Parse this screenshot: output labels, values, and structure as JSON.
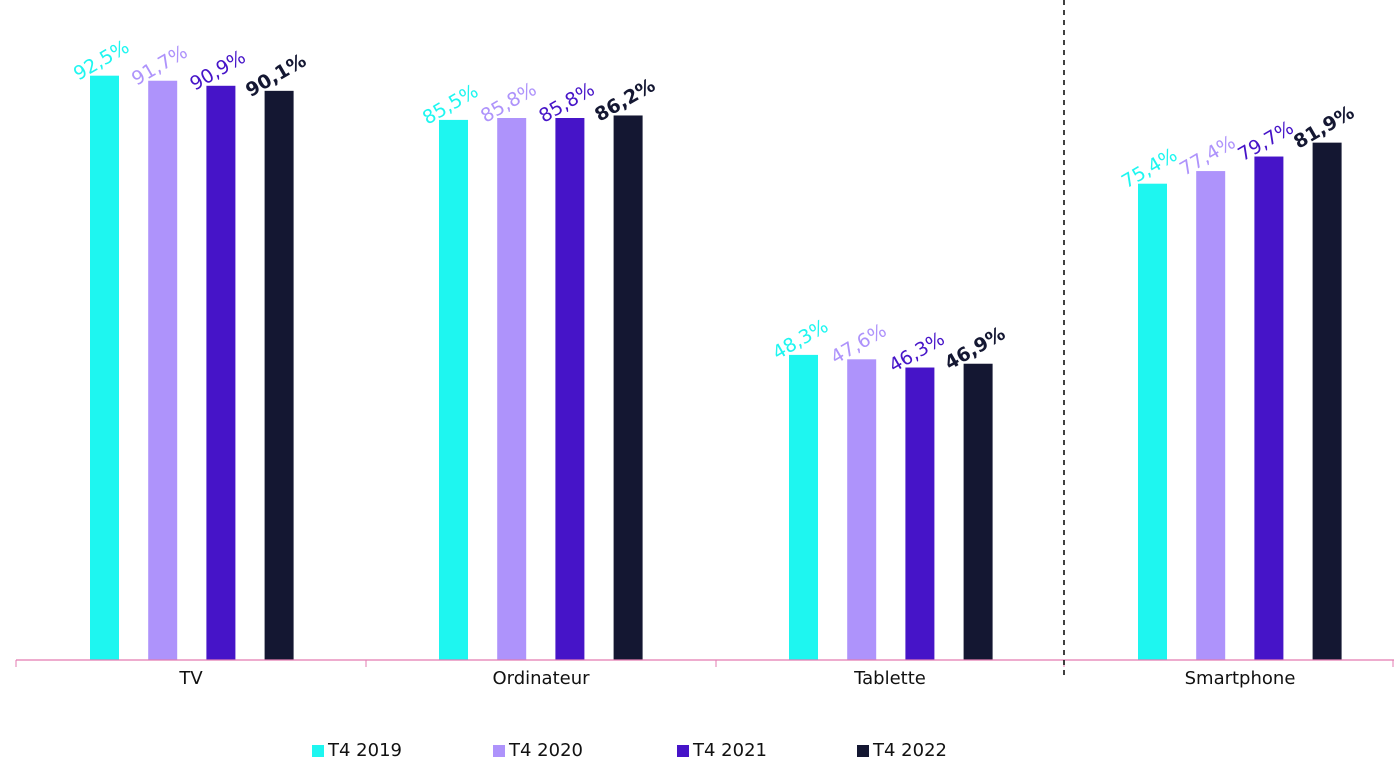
{
  "chart_data": {
    "type": "bar",
    "categories": [
      "TV",
      "Ordinateur",
      "Tablette",
      "Smartphone"
    ],
    "series": [
      {
        "name": "T4 2019",
        "color": "#1EF6F0",
        "values": [
          92.5,
          85.5,
          48.3,
          75.4
        ],
        "labels": [
          "92,5%",
          "85,5%",
          "48,3%",
          "75,4%"
        ],
        "bold": false
      },
      {
        "name": "T4 2020",
        "color": "#AE93FB",
        "values": [
          91.7,
          85.8,
          47.6,
          77.4
        ],
        "labels": [
          "91,7%",
          "85,8%",
          "47,6%",
          "77,4%"
        ],
        "bold": false
      },
      {
        "name": "T4 2021",
        "color": "#4614C8",
        "values": [
          90.9,
          85.8,
          46.3,
          79.7
        ],
        "labels": [
          "90,9%",
          "85,8%",
          "46,3%",
          "79,7%"
        ],
        "bold": false
      },
      {
        "name": "T4 2022",
        "color": "#141732",
        "values": [
          90.1,
          86.2,
          46.9,
          81.9
        ],
        "labels": [
          "90,1%",
          "86,2%",
          "46,9%",
          "81,9%"
        ],
        "bold": true
      }
    ],
    "ylim": [
      0,
      100
    ],
    "grid": false,
    "legend_position": "bottom-center",
    "axis_color": "#E37BB0",
    "divider": "dashed line between Tablette and Smartphone"
  }
}
